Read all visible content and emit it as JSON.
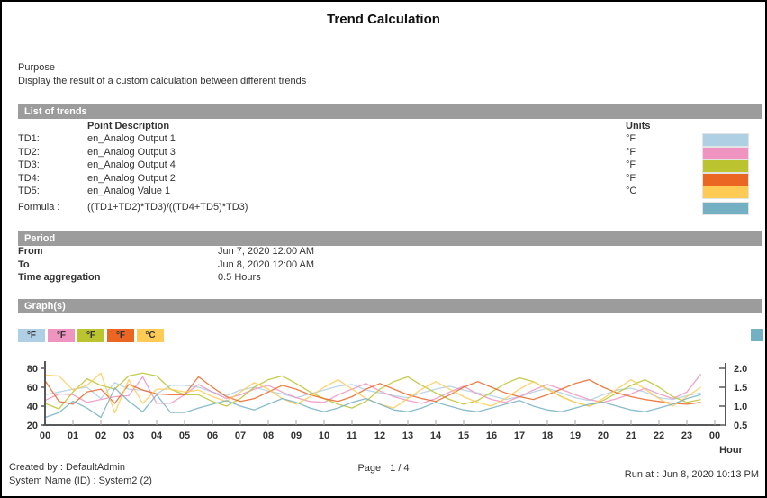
{
  "page": {
    "title": "Trend Calculation"
  },
  "purpose": {
    "label": "Purpose :",
    "text": "Display the result of a custom calculation between different trends"
  },
  "sections": {
    "list_of_trends": "List of trends",
    "period": "Period",
    "graphs": "Graph(s)"
  },
  "trends": {
    "col_description": "Point Description",
    "col_units": "Units",
    "rows": [
      {
        "id": "TD1:",
        "description": "en_Analog Output 1",
        "units": "°F",
        "color": "#AECFE4"
      },
      {
        "id": "TD2:",
        "description": "en_Analog Output 3",
        "units": "°F",
        "color": "#EF93C0"
      },
      {
        "id": "TD3:",
        "description": "en_Analog Output 4",
        "units": "°F",
        "color": "#BBC32E"
      },
      {
        "id": "TD4:",
        "description": "en_Analog Output 2",
        "units": "°F",
        "color": "#EB6523"
      },
      {
        "id": "TD5:",
        "description": "en_Analog Value 1",
        "units": "°C",
        "color": "#FFCB55"
      }
    ],
    "formula": {
      "label": "Formula :",
      "value": "((TD1+TD2)*TD3)/((TD4+TD5)*TD3)",
      "color": "#74B0C4"
    }
  },
  "period": {
    "rows": [
      {
        "label": "From",
        "value": "Jun 7, 2020 12:00 AM"
      },
      {
        "label": "To",
        "value": "Jun 8, 2020 12:00 AM"
      },
      {
        "label": "Time aggregation",
        "value": "0.5 Hours"
      }
    ]
  },
  "chart_data": {
    "type": "line",
    "title": "",
    "xlabel": "Hour",
    "x_start_hour": 0,
    "x_step_hours": 0.5,
    "x_tick_labels": [
      "00",
      "01",
      "02",
      "03",
      "04",
      "05",
      "06",
      "07",
      "08",
      "09",
      "10",
      "11",
      "12",
      "13",
      "14",
      "15",
      "16",
      "17",
      "18",
      "19",
      "20",
      "21",
      "22",
      "23",
      "00"
    ],
    "left_axis": {
      "ticks": [
        20,
        40,
        60,
        80
      ],
      "range": [
        20,
        80
      ]
    },
    "right_axis": {
      "ticks": [
        0.5,
        1.0,
        1.5,
        2.0
      ],
      "range": [
        0.5,
        2.0
      ]
    },
    "legend": [
      {
        "label": "°F",
        "color": "#AECFE4"
      },
      {
        "label": "°F",
        "color": "#EF93C0"
      },
      {
        "label": "°F",
        "color": "#BBC32E"
      },
      {
        "label": "°F",
        "color": "#EB6523"
      },
      {
        "label": "°C",
        "color": "#FFCB55"
      }
    ],
    "right_legend": {
      "label": "",
      "color": "#74B0C4"
    },
    "series": [
      {
        "name": "TD1 en_Analog Output 1 (°F)",
        "axis": "left",
        "color": "#AECFE4",
        "values": [
          52,
          55,
          58,
          60,
          48,
          65,
          58,
          57,
          53,
          62,
          62,
          60,
          55,
          51,
          57,
          60,
          56,
          53,
          49,
          53,
          57,
          61,
          63,
          57,
          54,
          51,
          49,
          54,
          58,
          61,
          57,
          54,
          51,
          47,
          50,
          55,
          59,
          54,
          49,
          46,
          52,
          57,
          59,
          55,
          49,
          47,
          51,
          54
        ]
      },
      {
        "name": "TD2 en_Analog Output 3 (°F)",
        "axis": "left",
        "color": "#EF93C0",
        "values": [
          46,
          53,
          52,
          44,
          47,
          50,
          51,
          71,
          43,
          43,
          52,
          63,
          55,
          48,
          52,
          58,
          62,
          55,
          49,
          45,
          44,
          52,
          58,
          64,
          56,
          50,
          46,
          43,
          48,
          55,
          61,
          53,
          47,
          44,
          50,
          57,
          63,
          58,
          52,
          47,
          44,
          48,
          53,
          59,
          53,
          48,
          55,
          74
        ]
      },
      {
        "name": "TD3 en_Analog Output 4 (°F)",
        "axis": "left",
        "color": "#BBC32E",
        "values": [
          43,
          37,
          55,
          69,
          62,
          58,
          72,
          75,
          72,
          58,
          52,
          52,
          45,
          40,
          48,
          60,
          68,
          72,
          64,
          55,
          48,
          42,
          38,
          45,
          58,
          66,
          71,
          62,
          54,
          47,
          42,
          46,
          55,
          64,
          70,
          66,
          58,
          50,
          44,
          40,
          46,
          54,
          62,
          68,
          60,
          50,
          44,
          47
        ]
      },
      {
        "name": "TD4 en_Analog Output 2 (°F)",
        "axis": "left",
        "color": "#EB6523",
        "values": [
          67,
          45,
          42,
          55,
          58,
          43,
          63,
          57,
          53,
          52,
          52,
          71,
          60,
          50,
          45,
          48,
          55,
          62,
          58,
          52,
          48,
          45,
          50,
          58,
          64,
          58,
          52,
          48,
          45,
          52,
          60,
          66,
          60,
          54,
          50,
          47,
          52,
          58,
          64,
          68,
          60,
          54,
          50,
          47,
          45,
          43,
          42,
          44
        ]
      },
      {
        "name": "TD5 en_Analog Value 1 (°C)",
        "axis": "left",
        "color": "#FFCB55",
        "values": [
          73,
          72,
          57,
          62,
          75,
          33,
          68,
          43,
          58,
          58,
          55,
          57,
          50,
          45,
          55,
          65,
          58,
          48,
          42,
          50,
          60,
          68,
          58,
          48,
          42,
          38,
          48,
          58,
          66,
          58,
          50,
          44,
          40,
          48,
          58,
          66,
          58,
          50,
          44,
          40,
          48,
          58,
          68,
          58,
          48,
          40,
          50,
          60
        ]
      },
      {
        "name": "Formula ((TD1+TD2)*TD3)/((TD4+TD5)*TD3)",
        "axis": "right",
        "color": "#74B0C4",
        "values": [
          0.7,
          0.83,
          1.13,
          0.95,
          0.7,
          1.48,
          1.13,
          0.85,
          1.3,
          0.83,
          0.83,
          0.95,
          1.05,
          1.15,
          1.0,
          0.9,
          1.05,
          1.2,
          1.1,
          0.95,
          0.85,
          0.95,
          1.1,
          1.2,
          1.05,
          0.9,
          0.85,
          0.95,
          1.1,
          1.0,
          0.9,
          0.85,
          0.95,
          1.05,
          1.15,
          1.0,
          0.9,
          0.85,
          0.95,
          1.05,
          1.1,
          1.0,
          0.9,
          0.85,
          0.95,
          1.05,
          1.2,
          1.3
        ]
      }
    ]
  },
  "footer": {
    "created_by": "Created by : DefaultAdmin",
    "system_name": "System Name (ID) : System2 (2)",
    "page_label": "Page",
    "page_value": "1 / 4",
    "run_at": "Run at : Jun 8, 2020 10:13 PM"
  }
}
